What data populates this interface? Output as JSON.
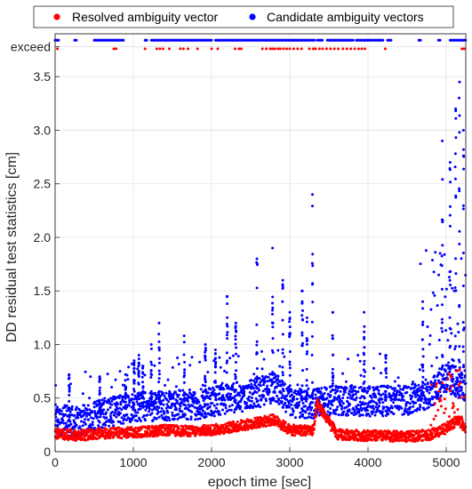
{
  "chart_data": {
    "type": "scatter",
    "xlabel": "epoch time [sec]",
    "ylabel": "DD residual test statistics [cm]",
    "xlim": [
      0,
      5250
    ],
    "ylim": [
      0,
      3.9
    ],
    "x_ticks": [
      0,
      1000,
      2000,
      3000,
      4000,
      5000
    ],
    "y_ticks": [
      0,
      0.5,
      1.0,
      1.5,
      2.0,
      2.5,
      3.0,
      3.5
    ],
    "y_tick_labels": [
      "0",
      "0.5",
      "1.0",
      "1.5",
      "2.0",
      "2.5",
      "3.0",
      "3.5"
    ],
    "extra_y_tick": {
      "label": "exceed",
      "value": 3.78
    },
    "grid": true,
    "legend_position": "top",
    "series": [
      {
        "name": "Resolved ambiguity vector",
        "color": "#ff0000",
        "exceed_row_value": 3.76,
        "exceed_epochs": [
          30,
          750,
          780,
          1150,
          1300,
          1340,
          1380,
          1460,
          1600,
          1640,
          1700,
          1820,
          2000,
          2080,
          2300,
          2350,
          2380,
          2650,
          2700,
          2750,
          2780,
          2810,
          2850,
          2880,
          2920,
          2960,
          3000,
          3050,
          3100,
          3150,
          3250,
          3300,
          3330,
          3380,
          3420,
          3470,
          3520,
          3570,
          3620,
          3680,
          3730,
          3780,
          3830,
          3880,
          3920,
          3960,
          4220,
          5200,
          5230
        ],
        "trend": [
          [
            0,
            0.17
          ],
          [
            300,
            0.15
          ],
          [
            600,
            0.17
          ],
          [
            1000,
            0.18
          ],
          [
            1400,
            0.2
          ],
          [
            1800,
            0.19
          ],
          [
            2100,
            0.21
          ],
          [
            2500,
            0.26
          ],
          [
            2800,
            0.3
          ],
          [
            3000,
            0.2
          ],
          [
            3300,
            0.2
          ],
          [
            3350,
            0.45
          ],
          [
            3600,
            0.16
          ],
          [
            4000,
            0.15
          ],
          [
            4500,
            0.14
          ],
          [
            4800,
            0.16
          ],
          [
            5000,
            0.22
          ],
          [
            5150,
            0.3
          ],
          [
            5250,
            0.22
          ]
        ]
      },
      {
        "name": "Candidate ambiguity vectors",
        "color": "#0000ff",
        "exceed_row_value": 3.84,
        "exceed_ranges": [
          [
            0,
            50
          ],
          [
            250,
            280
          ],
          [
            500,
            880
          ],
          [
            1150,
            1180
          ],
          [
            1230,
            2000
          ],
          [
            2050,
            3320
          ],
          [
            3350,
            3420
          ],
          [
            3480,
            3820
          ],
          [
            3850,
            4200
          ],
          [
            4250,
            4300
          ],
          [
            4650,
            4680
          ],
          [
            4900,
            4930
          ],
          [
            5050,
            5250
          ]
        ],
        "trend": [
          [
            0,
            0.3
          ],
          [
            300,
            0.28
          ],
          [
            600,
            0.36
          ],
          [
            1000,
            0.42
          ],
          [
            1400,
            0.43
          ],
          [
            1800,
            0.44
          ],
          [
            2100,
            0.48
          ],
          [
            2500,
            0.53
          ],
          [
            2800,
            0.6
          ],
          [
            3000,
            0.45
          ],
          [
            3300,
            0.45
          ],
          [
            3600,
            0.48
          ],
          [
            4000,
            0.47
          ],
          [
            4500,
            0.48
          ],
          [
            4800,
            0.55
          ],
          [
            5000,
            0.7
          ],
          [
            5250,
            0.6
          ]
        ],
        "spikes": [
          [
            180,
            0.72
          ],
          [
            570,
            0.7
          ],
          [
            900,
            0.72
          ],
          [
            1010,
            0.85
          ],
          [
            1070,
            0.9
          ],
          [
            1120,
            0.8
          ],
          [
            1230,
            1.0
          ],
          [
            1330,
            1.2
          ],
          [
            1650,
            1.08
          ],
          [
            1920,
            1.0
          ],
          [
            2050,
            0.95
          ],
          [
            2200,
            1.45
          ],
          [
            2310,
            1.2
          ],
          [
            2580,
            1.8
          ],
          [
            2780,
            1.9
          ],
          [
            2910,
            1.6
          ],
          [
            3000,
            1.3
          ],
          [
            3160,
            1.5
          ],
          [
            3220,
            1.25
          ],
          [
            3290,
            2.4
          ],
          [
            3550,
            1.3
          ],
          [
            3950,
            1.3
          ],
          [
            4230,
            0.9
          ],
          [
            4700,
            1.4
          ],
          [
            4950,
            2.9
          ],
          [
            5050,
            2.7
          ],
          [
            5120,
            3.2
          ],
          [
            5170,
            3.45
          ],
          [
            5220,
            3.0
          ]
        ]
      }
    ]
  }
}
